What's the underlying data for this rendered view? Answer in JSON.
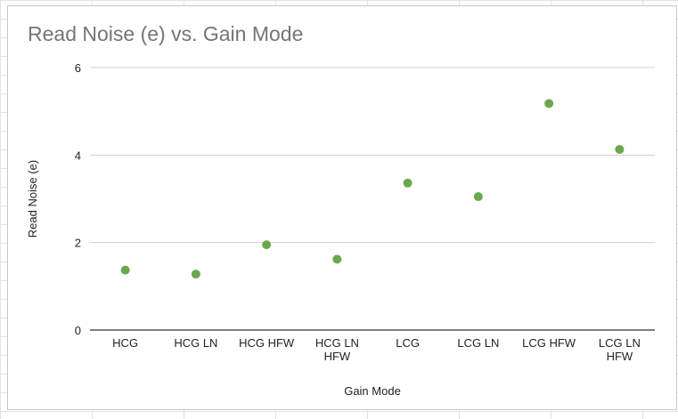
{
  "chart_data": {
    "type": "scatter",
    "title": "Read Noise (e) vs. Gain Mode",
    "xlabel": "Gain Mode",
    "ylabel": "Read Noise (e)",
    "categories": [
      [
        "HCG"
      ],
      [
        "HCG LN"
      ],
      [
        "HCG HFW"
      ],
      [
        "HCG LN",
        "HFW"
      ],
      [
        "LCG"
      ],
      [
        "LCG LN"
      ],
      [
        "LCG HFW"
      ],
      [
        "LCG LN",
        "HFW"
      ]
    ],
    "values": [
      1.37,
      1.28,
      1.95,
      1.62,
      3.36,
      3.05,
      5.18,
      4.13
    ],
    "ylim": [
      0,
      6
    ],
    "yticks": [
      "0",
      "2",
      "4",
      "6"
    ],
    "grid": true,
    "legend": "none",
    "colors": {
      "marker": "#6aa84f",
      "gridline": "#d0d0d0",
      "axis": "#333333"
    }
  }
}
